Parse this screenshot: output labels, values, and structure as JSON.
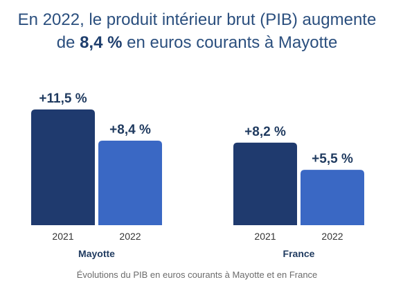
{
  "title": {
    "line1": "En 2022, le produit intérieur brut (PIB) augmente",
    "line2_before": "de ",
    "line2_bold": "8,4 %",
    "line2_after": " en euros courants à Mayotte"
  },
  "chart_data": {
    "type": "bar",
    "groups": [
      {
        "name": "Mayotte",
        "bars": [
          {
            "year": "2021",
            "value": 11.5,
            "label": "+11,5 %"
          },
          {
            "year": "2022",
            "value": 8.4,
            "label": "+8,4 %"
          }
        ]
      },
      {
        "name": "France",
        "bars": [
          {
            "year": "2021",
            "value": 8.2,
            "label": "+8,2 %"
          },
          {
            "year": "2022",
            "value": 5.5,
            "label": "+5,5 %"
          }
        ]
      }
    ],
    "ylim": [
      0,
      11.5
    ],
    "colors": {
      "2021": "#1f3a6e",
      "2022": "#3a68c4"
    },
    "grid": false,
    "legend": "none"
  },
  "caption": "Évolutions du PIB en euros courants à Mayotte et en France"
}
